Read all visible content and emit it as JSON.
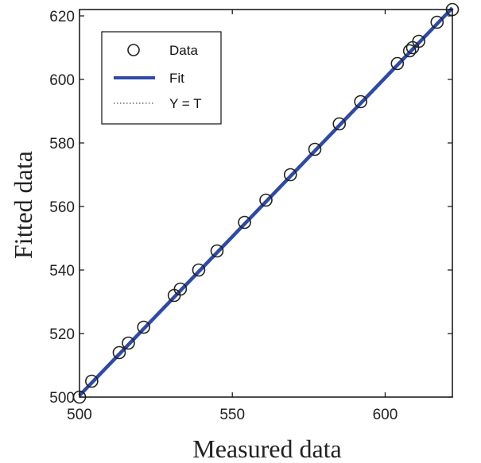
{
  "chart_data": {
    "type": "scatter",
    "xlabel": "Measured data",
    "ylabel": "Fitted data",
    "xlim": [
      500,
      622
    ],
    "ylim": [
      500,
      622
    ],
    "x_ticks": [
      500,
      550,
      600
    ],
    "y_ticks": [
      500,
      520,
      540,
      560,
      580,
      600,
      620
    ],
    "grid": false,
    "legend_position": "top-left",
    "series": [
      {
        "name": "Data",
        "kind": "markers",
        "marker": "circle",
        "color": "#222222",
        "points": [
          [
            500,
            500
          ],
          [
            504,
            505
          ],
          [
            513,
            514
          ],
          [
            516,
            517
          ],
          [
            521,
            522
          ],
          [
            531,
            532
          ],
          [
            533,
            534
          ],
          [
            539,
            540
          ],
          [
            545,
            546
          ],
          [
            554,
            555
          ],
          [
            561,
            562
          ],
          [
            569,
            570
          ],
          [
            577,
            578
          ],
          [
            585,
            586
          ],
          [
            592,
            593
          ],
          [
            604,
            605
          ],
          [
            608,
            609
          ],
          [
            609,
            610
          ],
          [
            611,
            612
          ],
          [
            617,
            618
          ],
          [
            622,
            622
          ]
        ]
      },
      {
        "name": "Fit",
        "kind": "line",
        "color": "#2e4aa8",
        "points": [
          [
            500,
            500.5
          ],
          [
            622,
            622.5
          ]
        ]
      },
      {
        "name": "Y = T",
        "kind": "dotted-line",
        "color": "#555555",
        "points": [
          [
            500,
            500
          ],
          [
            622,
            622
          ]
        ]
      }
    ]
  }
}
